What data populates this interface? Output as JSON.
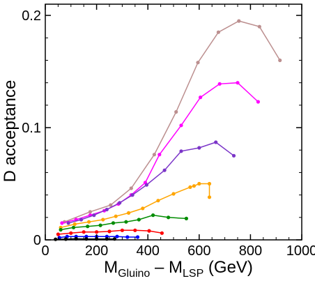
{
  "chart_data": {
    "type": "line",
    "title": "",
    "xlabel_parts": {
      "main": "M",
      "sub1": "Gluino",
      "mid": " – M",
      "sub2": "LSP",
      "unit": "  (GeV)"
    },
    "ylabel": "D acceptance",
    "xlim": [
      0,
      1000
    ],
    "ylim": [
      0,
      0.21
    ],
    "xticks": [
      0,
      200,
      400,
      600,
      800,
      1000
    ],
    "yticks": [
      0,
      0.1,
      0.2
    ],
    "ytick_labels": [
      "0",
      "0.1",
      "0.2"
    ],
    "grid": false,
    "legend": "none",
    "series": [
      {
        "color": "#bc8f8f",
        "points": [
          [
            75,
            0.016
          ],
          [
            175,
            0.025
          ],
          [
            255,
            0.031
          ],
          [
            335,
            0.046
          ],
          [
            425,
            0.076
          ],
          [
            510,
            0.114
          ],
          [
            595,
            0.158
          ],
          [
            675,
            0.185
          ],
          [
            755,
            0.195
          ],
          [
            835,
            0.19
          ],
          [
            915,
            0.16
          ]
        ]
      },
      {
        "color": "#ff00ff",
        "points": [
          [
            65,
            0.015
          ],
          [
            120,
            0.018
          ],
          [
            175,
            0.022
          ],
          [
            230,
            0.026
          ],
          [
            285,
            0.032
          ],
          [
            335,
            0.04
          ],
          [
            390,
            0.051
          ],
          [
            445,
            0.076
          ],
          [
            530,
            0.102
          ],
          [
            605,
            0.127
          ],
          [
            680,
            0.139
          ],
          [
            750,
            0.14
          ],
          [
            830,
            0.123
          ]
        ]
      },
      {
        "color": "#7b35c8",
        "points": [
          [
            90,
            0.015
          ],
          [
            140,
            0.018
          ],
          [
            190,
            0.022
          ],
          [
            240,
            0.027
          ],
          [
            290,
            0.033
          ],
          [
            340,
            0.04
          ],
          [
            395,
            0.049
          ],
          [
            465,
            0.062
          ],
          [
            530,
            0.079
          ],
          [
            600,
            0.082
          ],
          [
            665,
            0.087
          ],
          [
            735,
            0.075
          ]
        ]
      },
      {
        "color": "#ffa500",
        "points": [
          [
            60,
            0.011
          ],
          [
            115,
            0.014
          ],
          [
            170,
            0.016
          ],
          [
            225,
            0.018
          ],
          [
            275,
            0.021
          ],
          [
            325,
            0.024
          ],
          [
            380,
            0.028
          ],
          [
            440,
            0.035
          ],
          [
            500,
            0.041
          ],
          [
            565,
            0.047
          ],
          [
            580,
            0.048
          ],
          [
            640,
            0.05
          ],
          [
            600,
            0.05
          ],
          [
            640,
            0.038
          ]
        ]
      },
      {
        "color": "#008c00",
        "points": [
          [
            60,
            0.009
          ],
          [
            110,
            0.011
          ],
          [
            165,
            0.012
          ],
          [
            215,
            0.013
          ],
          [
            265,
            0.015
          ],
          [
            315,
            0.016
          ],
          [
            365,
            0.018
          ],
          [
            420,
            0.022
          ],
          [
            480,
            0.02
          ],
          [
            550,
            0.019
          ]
        ]
      },
      {
        "color": "#ff0000",
        "points": [
          [
            50,
            0.005
          ],
          [
            100,
            0.006
          ],
          [
            150,
            0.007
          ],
          [
            200,
            0.007
          ],
          [
            250,
            0.0075
          ],
          [
            300,
            0.0085
          ],
          [
            350,
            0.0085
          ],
          [
            405,
            0.008
          ],
          [
            455,
            0.006
          ]
        ]
      },
      {
        "color": "#0000ff",
        "points": [
          [
            55,
            0.002
          ],
          [
            85,
            0.003
          ],
          [
            120,
            0.003
          ],
          [
            160,
            0.003
          ],
          [
            200,
            0.003
          ],
          [
            240,
            0.003
          ],
          [
            280,
            0.003
          ],
          [
            320,
            0.0025
          ],
          [
            360,
            0.0025
          ]
        ]
      },
      {
        "color": "#000000",
        "points": [
          [
            40,
            0.0005
          ],
          [
            80,
            0.0007
          ],
          [
            120,
            0.001
          ],
          [
            160,
            0.0008
          ],
          [
            200,
            0.0008
          ],
          [
            240,
            0.0008
          ],
          [
            270,
            0.0008
          ]
        ]
      }
    ]
  }
}
